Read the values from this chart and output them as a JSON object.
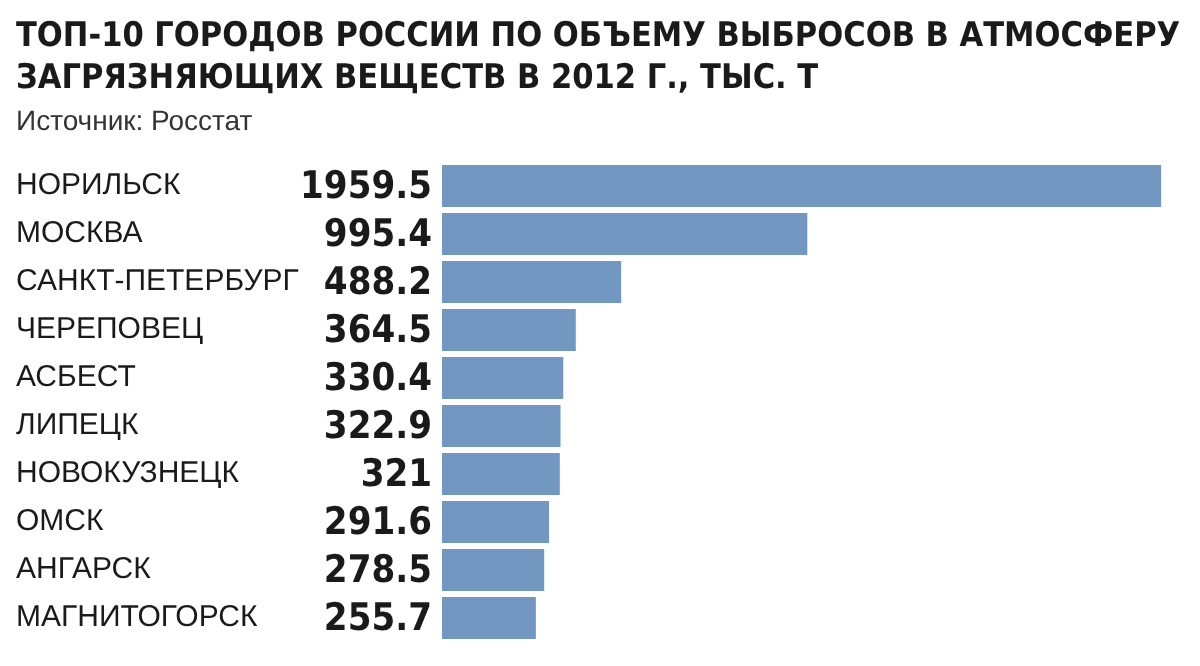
{
  "chart_data": {
    "type": "bar",
    "orientation": "horizontal",
    "title": "ТОП-10 ГОРОДОВ РОССИИ ПО ОБЪЕМУ ВЫБРОСОВ В АТМОСФЕРУ ЗАГРЯЗНЯЮЩИХ ВЕЩЕСТВ В 2012 Г., ТЫС. Т",
    "annotations": [
      "Источник: Росстат"
    ],
    "categories": [
      "НОРИЛЬСК",
      "МОСКВА",
      "САНКТ-ПЕТЕРБУРГ",
      "ЧЕРЕПОВЕЦ",
      "АСБЕСТ",
      "ЛИПЕЦК",
      "НОВОКУЗНЕЦК",
      "ОМСК",
      "АНГАРСК",
      "МАГНИТОГОРСК"
    ],
    "values": [
      1959.5,
      995.4,
      488.2,
      364.5,
      330.4,
      322.9,
      321,
      291.6,
      278.5,
      255.7
    ],
    "color": "#7298c2",
    "data_labels": true,
    "grid": false,
    "legend": false
  }
}
